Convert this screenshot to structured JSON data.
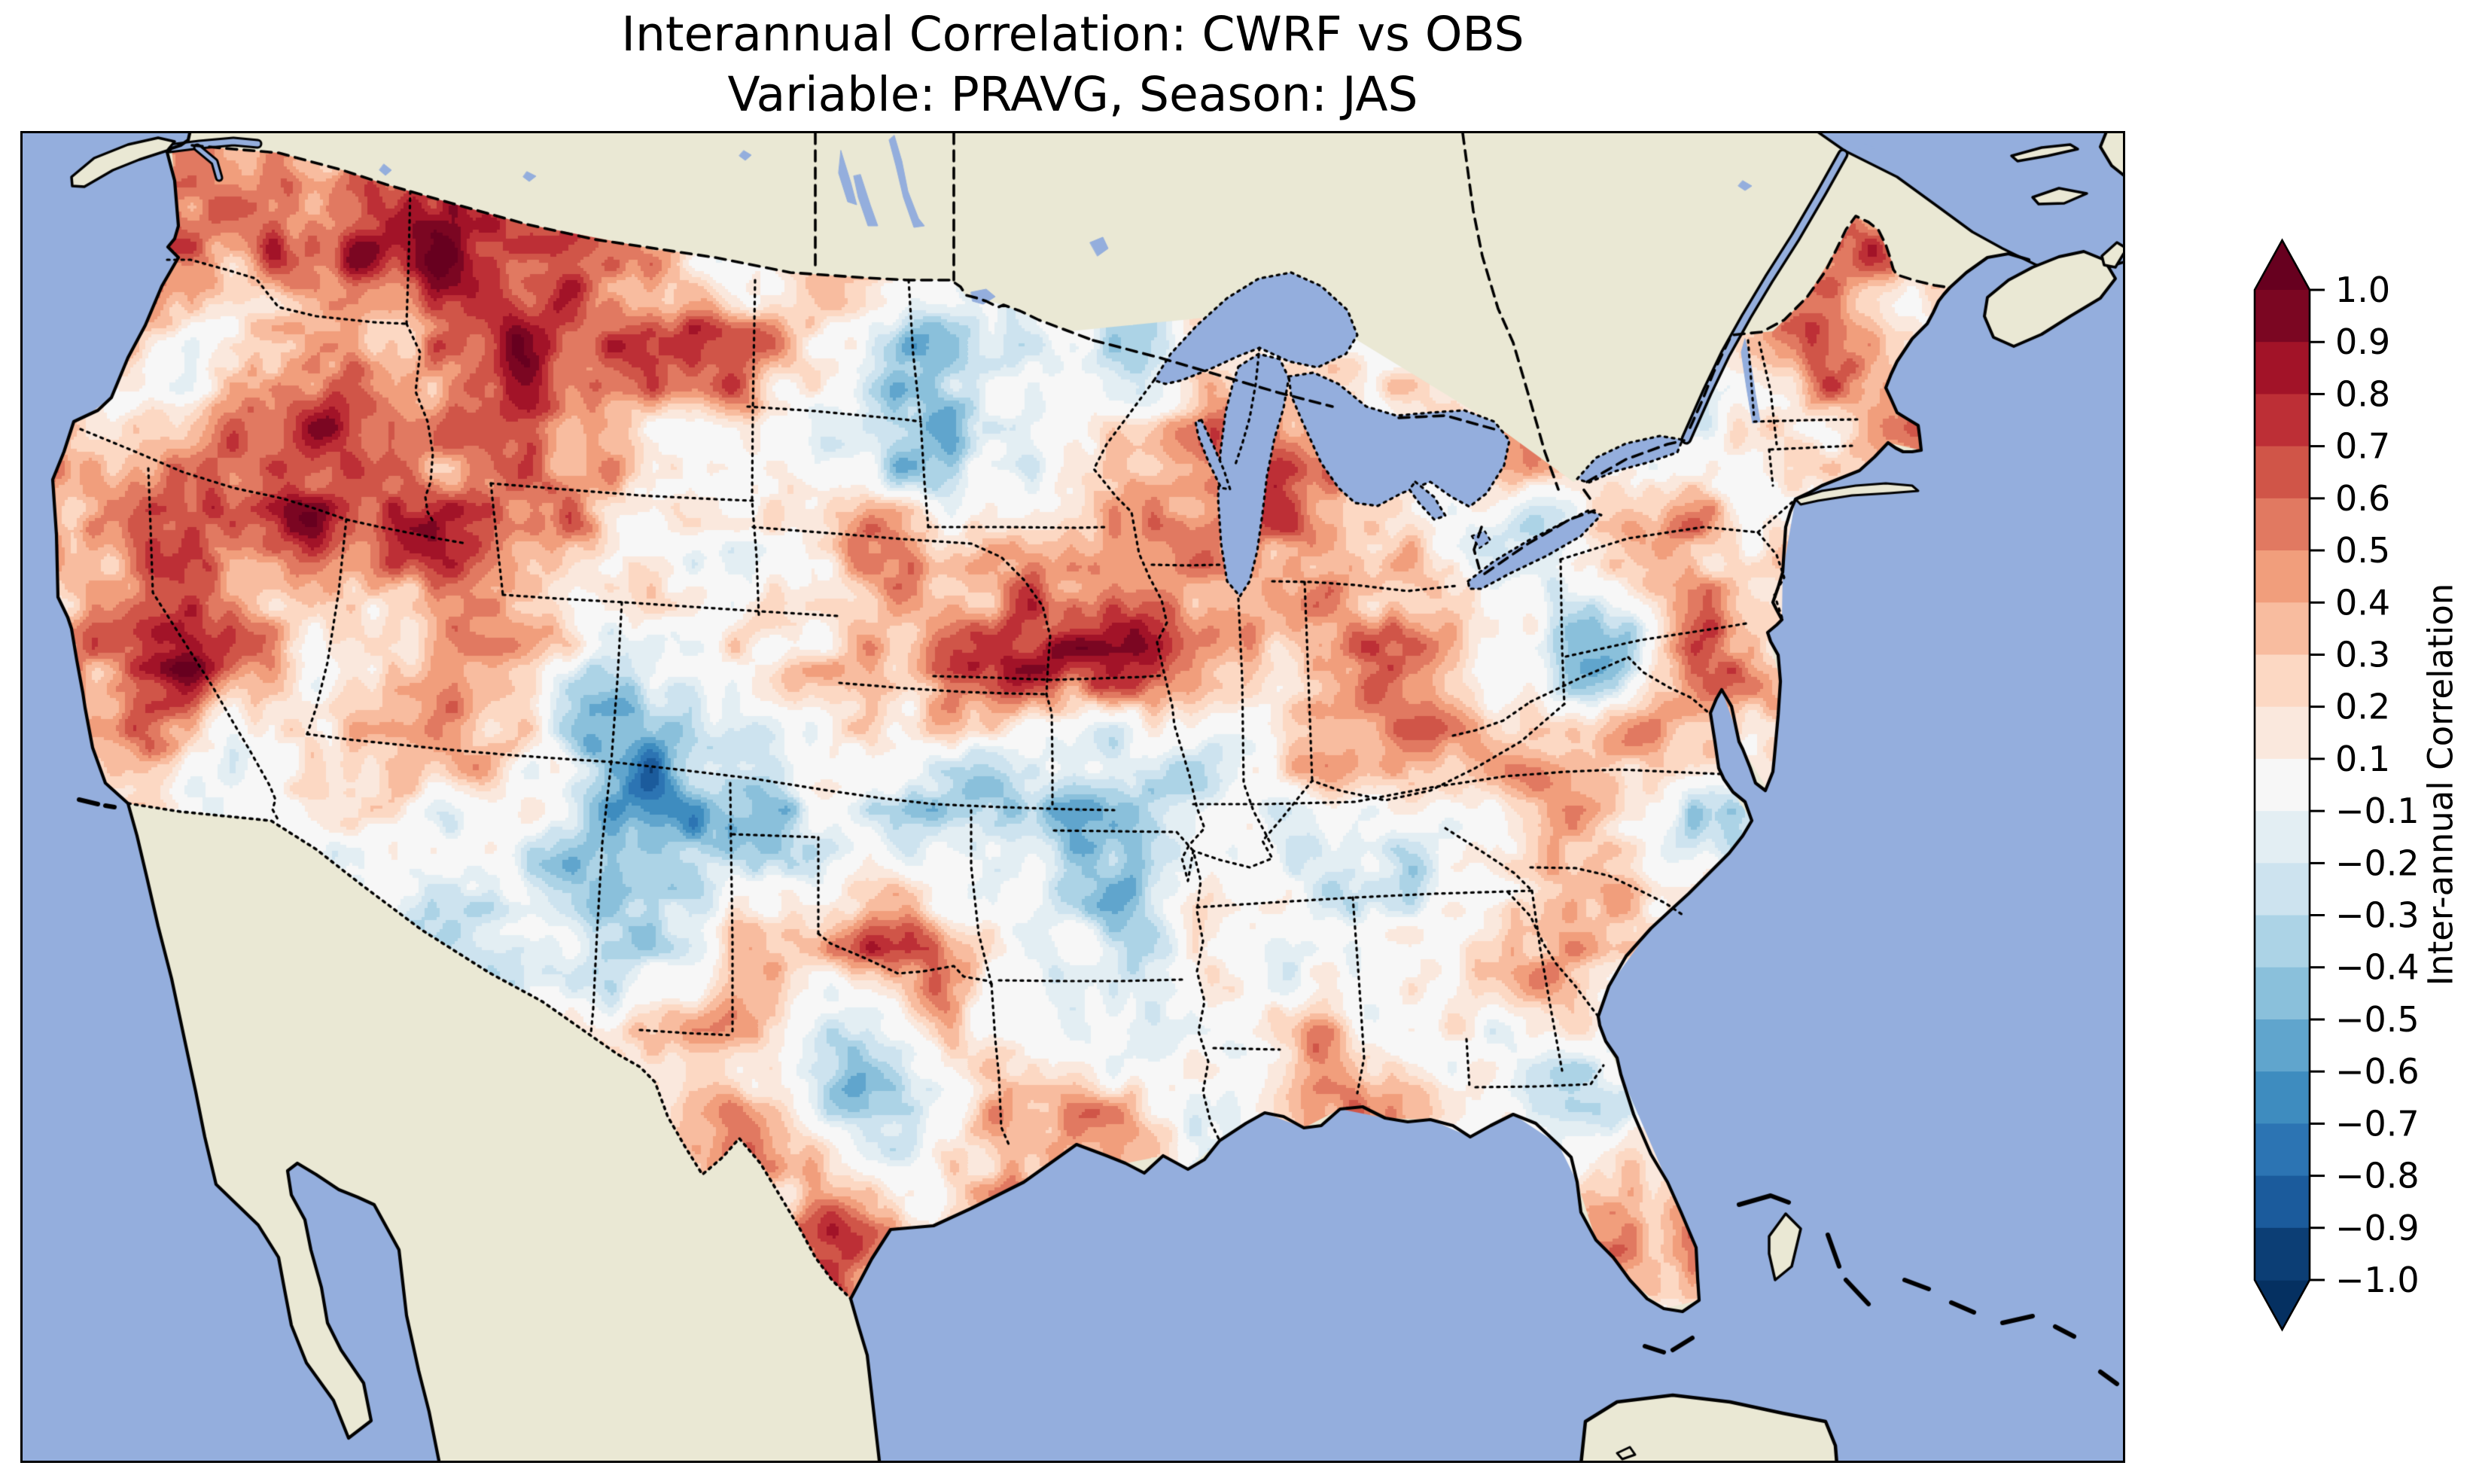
{
  "figure": {
    "title_line1": "Interannual Correlation: CWRF vs OBS",
    "title_line2": "Variable: PRAVG, Season: JAS",
    "background_color": "#ffffff"
  },
  "map": {
    "ocean_color": "#94aedd",
    "land_color": "#eae8d4",
    "coastline_color": "#000000",
    "state_border_style": "dotted",
    "country_border_style": "dashed",
    "frame_color": "#000000"
  },
  "colorbar": {
    "label": "Inter-annual Correlation",
    "tick_labels": [
      "1.0",
      "0.9",
      "0.8",
      "0.7",
      "0.6",
      "0.5",
      "0.4",
      "0.3",
      "0.2",
      "0.1",
      "−0.1",
      "−0.2",
      "−0.3",
      "−0.4",
      "−0.5",
      "−0.6",
      "−0.7",
      "−0.8",
      "−0.9",
      "−1.0"
    ],
    "colors_top_to_bottom": [
      "#7B0622",
      "#A21328",
      "#BD2F36",
      "#D05548",
      "#E17961",
      "#F19E7C",
      "#F8BC9F",
      "#FCD8C3",
      "#FAE8DD",
      "#F7F7F7",
      "#E3EEF3",
      "#CDE3EF",
      "#ACD3E6",
      "#8AC0DB",
      "#60A5CD",
      "#3E8CBF",
      "#2C74B3",
      "#1B5B9C",
      "#0C3E75"
    ],
    "over_color": "#67001F",
    "under_color": "#053061",
    "outline_color": "#000000"
  },
  "chart_data": {
    "type": "heatmap",
    "title": "Interannual Correlation: CWRF vs OBS",
    "subtitle": "Variable: PRAVG, Season: JAS",
    "comparison": "CWRF vs OBS",
    "variable": "PRAVG",
    "season": "JAS",
    "colorbar_label": "Inter-annual Correlation",
    "levels": [
      -1.0,
      -0.9,
      -0.8,
      -0.7,
      -0.6,
      -0.5,
      -0.4,
      -0.3,
      -0.2,
      -0.1,
      0.1,
      0.2,
      0.3,
      0.4,
      0.5,
      0.6,
      0.7,
      0.8,
      0.9,
      1.0
    ],
    "value_range": [
      -1.0,
      1.0
    ],
    "legend_position": "right-vertical",
    "region": "Contiguous United States (surrounding Canada, Mexico and ocean masked out)",
    "palette_neg_to_pos": [
      "#0C3E75",
      "#1B5B9C",
      "#2C74B3",
      "#3E8CBF",
      "#60A5CD",
      "#8AC0DB",
      "#ACD3E6",
      "#CDE3EF",
      "#E3EEF3",
      "#F7F7F7",
      "#FAE8DD",
      "#FCD8C3",
      "#F8BC9F",
      "#F19E7C",
      "#E17961",
      "#D05548",
      "#BD2F36",
      "#A21328",
      "#7B0622"
    ],
    "coarse_grid": {
      "description": "Approximate correlation values read from the shaded field, sampled on a 16 (west→east) × 9 (north→south) grid in normalized map coordinates",
      "u_range": [
        0.01,
        0.99
      ],
      "v_range": [
        0.09,
        0.93
      ],
      "values": [
        [
          0.35,
          0.45,
          0.55,
          0.7,
          0.35,
          -0.1,
          0.35,
          -0.15,
          0.25,
          0.2,
          0.1,
          0.1,
          0.45,
          0.5,
          0.55,
          0.3
        ],
        [
          0.3,
          0.15,
          0.6,
          0.75,
          0.5,
          0.55,
          -0.4,
          0.05,
          -0.3,
          0.3,
          0.2,
          0.05,
          -0.3,
          0.55,
          0.3,
          0.2
        ],
        [
          0.8,
          0.75,
          0.45,
          0.4,
          0.3,
          -0.25,
          0.15,
          -0.1,
          0.45,
          0.8,
          0.35,
          -0.2,
          0.5,
          -0.1,
          0.2,
          0.1
        ],
        [
          0.4,
          0.8,
          -0.2,
          0.45,
          -0.45,
          -0.2,
          0.1,
          0.75,
          0.5,
          0.25,
          0.45,
          -0.35,
          0.4,
          0.1,
          0.05,
          0.0
        ],
        [
          0.35,
          0.2,
          0.3,
          0.1,
          -0.4,
          -0.5,
          -0.2,
          -0.35,
          -0.25,
          -0.15,
          0.2,
          0.55,
          -0.4,
          0.15,
          0.0,
          0.0
        ],
        [
          0.2,
          0.55,
          0.3,
          -0.2,
          -0.3,
          0.25,
          0.55,
          0.1,
          -0.2,
          0.1,
          -0.25,
          0.45,
          0.35,
          0.0,
          0.0,
          0.0
        ],
        [
          0.0,
          0.0,
          0.1,
          0.1,
          0.4,
          0.2,
          -0.6,
          0.3,
          0.15,
          0.2,
          0.3,
          -0.3,
          0.2,
          0.0,
          0.0,
          0.0
        ],
        [
          0.0,
          0.0,
          0.0,
          0.0,
          0.1,
          0.2,
          0.5,
          0.45,
          -0.1,
          0.1,
          0.5,
          0.2,
          0.55,
          0.0,
          0.0,
          0.0
        ],
        [
          0.0,
          0.0,
          0.0,
          0.0,
          0.0,
          0.0,
          0.2,
          0.3,
          0.1,
          0.0,
          0.2,
          0.3,
          0.3,
          0.0,
          0.0,
          0.0
        ]
      ],
      "pattern_notes": [
        "strong positive (dark red) band along northern California coast and Sierra Nevada",
        "strong positive over Idaho / western Montana and NW Wyoming",
        "positive blob over Nebraska-Iowa-Missouri junction and southern Wisconsin / N Illinois",
        "negative (blue) over western Colorado, New Mexico / Texas panhandle and central Texas",
        "negative over Indiana-Ohio and Chesapeake Bay region",
        "positive over Florida peninsula, Alabama/Florida panhandle coast, North Carolina and northern New England"
      ]
    }
  }
}
